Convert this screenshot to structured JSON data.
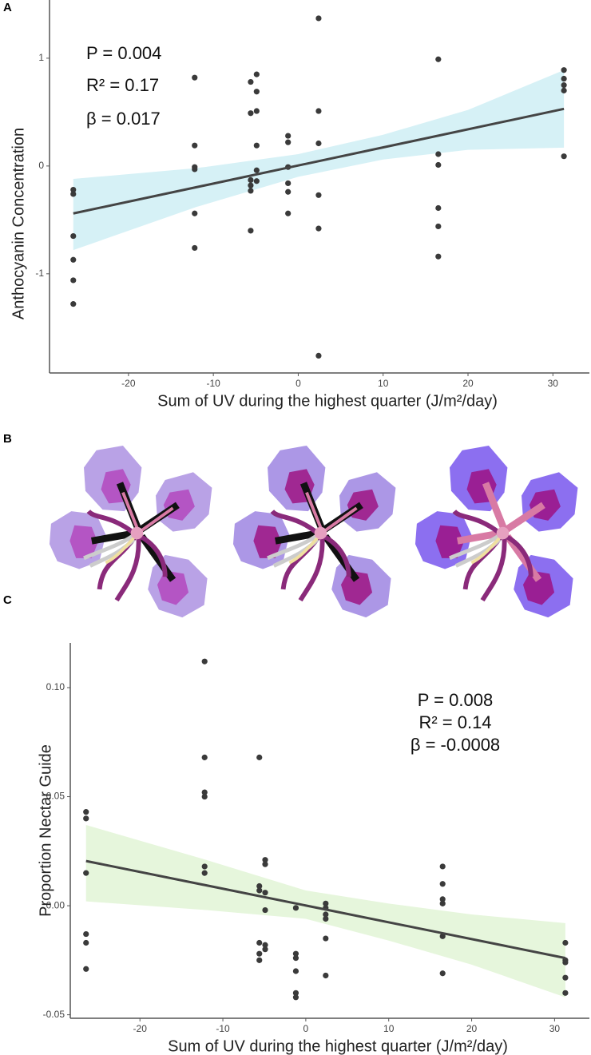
{
  "panels": [
    "A",
    "B",
    "C"
  ],
  "chart_data": [
    {
      "type": "scatter",
      "x_label": "Sum of UV during the highest quarter (J/m²/day)",
      "y_label": "Anthocyanin Concentration",
      "annotations": [
        "P = 0.004",
        "R² = 0.17",
        "β = 0.017"
      ],
      "color": "#3a3a3a",
      "x": [
        -26.5,
        -26.5,
        -26.5,
        -26.5,
        -26.5,
        -26.5,
        -12.2,
        -12.2,
        -12.2,
        -12.2,
        -12.2,
        -12.2,
        -5.6,
        -5.6,
        -5.6,
        -5.6,
        -5.6,
        -5.6,
        -4.9,
        -4.9,
        -4.9,
        -4.9,
        -4.9,
        -4.9,
        -1.2,
        -1.2,
        -1.2,
        -1.2,
        -1.2,
        -1.2,
        2.4,
        2.4,
        2.4,
        2.4,
        2.4,
        2.4,
        16.5,
        16.5,
        16.5,
        16.5,
        16.5,
        16.5,
        31.3,
        31.3,
        31.3,
        31.3,
        31.3
      ],
      "y": [
        -0.22,
        -0.26,
        -0.65,
        -0.87,
        -1.06,
        -1.28,
        0.82,
        0.19,
        -0.01,
        -0.03,
        -0.44,
        -0.76,
        0.78,
        0.49,
        -0.13,
        -0.18,
        -0.23,
        -0.6,
        0.85,
        0.69,
        0.51,
        0.19,
        -0.04,
        -0.14,
        0.28,
        0.22,
        -0.01,
        -0.16,
        -0.24,
        -0.44,
        1.37,
        0.51,
        0.21,
        -0.27,
        -0.58,
        -1.76,
        0.99,
        0.11,
        0.01,
        -0.39,
        -0.56,
        -0.84,
        0.89,
        0.81,
        0.75,
        0.7,
        0.09
      ],
      "fit": {
        "x": [
          -26.5,
          31.3
        ],
        "y": [
          -0.44,
          0.53
        ],
        "color": "#444444"
      },
      "band": {
        "x": [
          -26.5,
          -12,
          0,
          10,
          20,
          31.3
        ],
        "lower": [
          -0.78,
          -0.38,
          -0.1,
          0.06,
          0.15,
          0.17
        ],
        "upper": [
          -0.12,
          -0.02,
          0.11,
          0.29,
          0.52,
          0.89
        ],
        "color": "#d6f1f6"
      },
      "xlim": [
        -29.3,
        34.3
      ],
      "ylim": [
        -1.92,
        1.54
      ],
      "xticks": [
        -20,
        -10,
        0,
        10,
        20,
        30
      ],
      "yticks": [
        -1,
        0,
        1
      ]
    },
    {
      "type": "scatter",
      "x_label": "Sum of UV during the highest quarter (J/m²/day)",
      "y_label": "Proportion Nectar Guide",
      "annotations": [
        "P = 0.008",
        "R² = 0.14",
        "β = -0.0008"
      ],
      "color": "#3a3a3a",
      "x": [
        -26.5,
        -26.5,
        -26.5,
        -26.5,
        -26.5,
        -26.5,
        -12.2,
        -12.2,
        -12.2,
        -12.2,
        -12.2,
        -12.2,
        -5.6,
        -5.6,
        -5.6,
        -5.6,
        -5.6,
        -5.6,
        -4.9,
        -4.9,
        -4.9,
        -4.9,
        -4.9,
        -4.9,
        -1.2,
        -1.2,
        -1.2,
        -1.2,
        -1.2,
        -1.2,
        2.4,
        2.4,
        2.4,
        2.4,
        2.4,
        2.4,
        16.5,
        16.5,
        16.5,
        16.5,
        16.5,
        16.5,
        31.3,
        31.3,
        31.3,
        31.3,
        31.3
      ],
      "y": [
        0.043,
        0.04,
        0.015,
        -0.013,
        -0.017,
        -0.029,
        0.112,
        0.068,
        0.052,
        0.05,
        0.018,
        0.015,
        0.068,
        0.009,
        0.007,
        -0.017,
        -0.022,
        -0.025,
        0.021,
        0.019,
        0.006,
        -0.002,
        -0.018,
        -0.02,
        -0.001,
        -0.022,
        -0.024,
        -0.03,
        -0.04,
        -0.042,
        0.001,
        -0.001,
        -0.004,
        -0.006,
        -0.015,
        -0.032,
        0.018,
        0.01,
        0.003,
        0.001,
        -0.014,
        -0.031,
        -0.017,
        -0.025,
        -0.026,
        -0.033,
        -0.04
      ],
      "fit": {
        "x": [
          -26.5,
          31.3
        ],
        "y": [
          0.0205,
          -0.024
        ],
        "color": "#444444"
      },
      "band": {
        "x": [
          -26.5,
          -12,
          0,
          10,
          20,
          31.3
        ],
        "lower": [
          0.002,
          -0.002,
          -0.006,
          -0.016,
          -0.027,
          -0.042
        ],
        "upper": [
          0.037,
          0.021,
          0.007,
          0.001,
          -0.004,
          -0.008
        ],
        "color": "#e6f6dc"
      },
      "xlim": [
        -28.4,
        34.2
      ],
      "ylim": [
        -0.0516,
        0.1205
      ],
      "xticks": [
        -20,
        -10,
        0,
        10,
        20,
        30
      ],
      "yticks": [
        -0.05,
        {
          "value": 0,
          "label": "0.00"
        },
        0.05,
        {
          "value": 0.1,
          "label": "0.10"
        }
      ]
    }
  ]
}
